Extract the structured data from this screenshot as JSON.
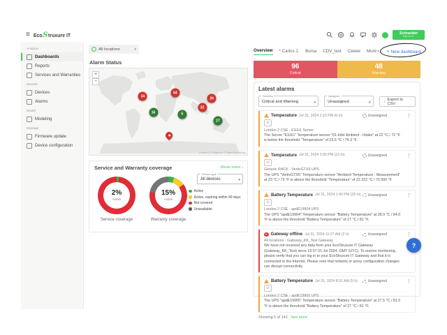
{
  "icons": {
    "menu": "≡",
    "kebab": "⋮",
    "chevron_down": "▾",
    "chevron_right": "›",
    "muted": "∅",
    "download": "↓",
    "plus": "+",
    "critical_x": "✕",
    "help": "?"
  },
  "topbar": {
    "brand_prefix": "Eco",
    "brand_s": "S",
    "brand_suffix": "truxure IT",
    "icon_names": [
      "search-icon",
      "help-ring-icon",
      "notifications-bell-icon",
      "feedback-icon",
      "settings-gear-icon",
      "avatar"
    ],
    "logo_line1": "Schneider",
    "logo_line2": "Electric"
  },
  "sidebar": {
    "sections": [
      {
        "label": "Analyze",
        "items": [
          {
            "label": "Dashboards",
            "icon": "dashboard-icon",
            "active": true
          },
          {
            "label": "Reports",
            "icon": "report-icon"
          },
          {
            "label": "Services and Warranties",
            "icon": "shield-icon"
          }
        ]
      },
      {
        "label": "Monitor",
        "items": [
          {
            "label": "Devices",
            "icon": "device-icon"
          },
          {
            "label": "Alarms",
            "icon": "alarm-bell-icon"
          }
        ]
      },
      {
        "label": "Model",
        "items": [
          {
            "label": "Modeling",
            "icon": "modeling-icon"
          }
        ]
      },
      {
        "label": "Manage",
        "items": [
          {
            "label": "Firmware update",
            "icon": "firmware-icon"
          },
          {
            "label": "Device configuration",
            "icon": "config-icon"
          }
        ]
      }
    ]
  },
  "filters_top": {
    "location": "All locations"
  },
  "alarm_status": {
    "title": "Alarm Status",
    "zoom_in": "+",
    "zoom_out": "−",
    "attribution": "Leaflet | © Mapbox © OpenStreetMap",
    "markers": [
      {
        "value": "34",
        "type": "critical",
        "x": 33.8,
        "y": 32.5
      },
      {
        "value": "64",
        "type": "critical",
        "x": 54.4,
        "y": 28.3
      },
      {
        "value": "16",
        "type": "ok",
        "x": 40.5,
        "y": 51.0
      },
      {
        "value": "5",
        "type": "ok",
        "x": 58.8,
        "y": 53.2
      },
      {
        "value": "32",
        "type": "critical",
        "x": 71.5,
        "y": 45.2
      },
      {
        "value": "26",
        "type": "critical",
        "x": 77.5,
        "y": 34.9
      },
      {
        "value": "27",
        "type": "ok",
        "x": 81.4,
        "y": 60.6
      },
      {
        "type": "pin",
        "x": 50.6,
        "y": 81.0
      }
    ]
  },
  "coverage": {
    "title": "Service and Warranty coverage",
    "show_more": "Show more ›",
    "device_type_label": "Device type",
    "device_type_value": "All devices",
    "donuts": [
      {
        "caption": "Service coverage",
        "percent": "2%",
        "sublabel": "Active",
        "segments": [
          {
            "color": "#35b54a",
            "pct": 2
          },
          {
            "color": "#e02d38",
            "pct": 98
          }
        ]
      },
      {
        "caption": "Warranty coverage",
        "percent": "15%",
        "sublabel": "Active",
        "segments": [
          {
            "color": "#35b54a",
            "pct": 5
          },
          {
            "color": "#f5cb2f",
            "pct": 10
          },
          {
            "color": "#e02d38",
            "pct": 63
          },
          {
            "color": "#757575",
            "pct": 22
          }
        ]
      }
    ],
    "legend": [
      {
        "label": "Active",
        "color": "#35b54a"
      },
      {
        "label": "Active, expiring within 90 days",
        "color": "#f5cb2f"
      },
      {
        "label": "Not covered",
        "color": "#e02d38"
      },
      {
        "label": "Unavailable",
        "color": "#5d5d5d"
      }
    ]
  },
  "tabs": {
    "items": [
      {
        "label": "Overview",
        "active": true
      },
      {
        "label": "* Carlos J."
      },
      {
        "label": "Bursa"
      },
      {
        "label": "CDV_test"
      },
      {
        "label": "Ceeee"
      },
      {
        "label": "More",
        "chevron": true
      }
    ],
    "new_dashboard": "New dashboard"
  },
  "summary": {
    "critical": {
      "count": "96",
      "label": "Critical"
    },
    "warning": {
      "count": "48",
      "label": "Warning"
    }
  },
  "latest_alarms": {
    "title": "Latest alarms",
    "severity_label": "Severity",
    "severity_value": "Critical and Warning",
    "assignee_label": "Assignee",
    "assignee_value": "Unassigned",
    "export_label": "Export to CSV",
    "alarms": [
      {
        "severity": "warning",
        "title": "Temperature",
        "time": "Jul 31, 2024 2:10 PM (6 m)",
        "assignee": "Unassigned",
        "chip": true,
        "location": "London 2 CSE - ESXi1 Server",
        "description": "The Server \"ESXi1\" Temperature sensor \"01-Inlet Ambient - Intake\" at 22 °C / 72 °F is below the threshold \"Temperature\" of 23.5 °C / 74.3 °F."
      },
      {
        "severity": "warning",
        "title": "Temperature",
        "time": "Jul 31, 2024 2:00 PM (15 m)",
        "assignee": "Unassigned",
        "chip": true,
        "location": "Generic RACK - VertivGTX5 UPS",
        "description": "The UPS \"VertivGTX5\" Temperature sensor \"Ambient Temperature - Measurement\" at 23 °C / 73 °F is above the threshold \"Temperature\" of 22.222 °C / 72.000 °F."
      },
      {
        "severity": "warning",
        "title": "Battery Temperature",
        "time": "Jul 31, 2024 1:43 PM (33 m)",
        "assignee": "Unassigned",
        "chip": true,
        "location": "London 2 CSE - apdE19904 UPS",
        "description": "The UPS \"apdE19904\" Temperature sensor \"Battery Temperature\" at 28.9 °C / 84.0 °F is above the threshold \"Battery Temperature\" of 27 °C / 81 °F."
      },
      {
        "severity": "critical",
        "title": "Gateway offline",
        "time": "Jul 31, 2024 11:27 AM (2 h)",
        "assignee": "Unassigned",
        "chip": false,
        "location": "All locations - Gateway_KK_Test Gateway",
        "description": "We have not received any data from your EcoStruxure IT Gateway (Gateway_KK_Test) since 15:07 31 Jul 2024, GMT (UTC). To restore monitoring, please verify that you can log in to your EcoStruxure IT Gateway and that it is connected to the Internet. Please note that network or proxy configuration changes can disrupt connectivity."
      },
      {
        "severity": "warning",
        "title": "Battery Temperature",
        "time": "Jul 31, 2024 8:31 AM (5 h)",
        "assignee": "Unassigned",
        "chip": true,
        "location": "London 2 CSE - apdE19905 UPS",
        "description": "The UPS \"apdE19905\" Temperature sensor \"Battery Temperature\" at 27.5 °C / 81.5 °F is above the threshold \"Battery Temperature\" of 27 °C / 81 °F."
      }
    ],
    "footer": {
      "showing": "Showing 5 of 143",
      "see_more": "See more"
    }
  },
  "fab": {
    "label": "?"
  }
}
